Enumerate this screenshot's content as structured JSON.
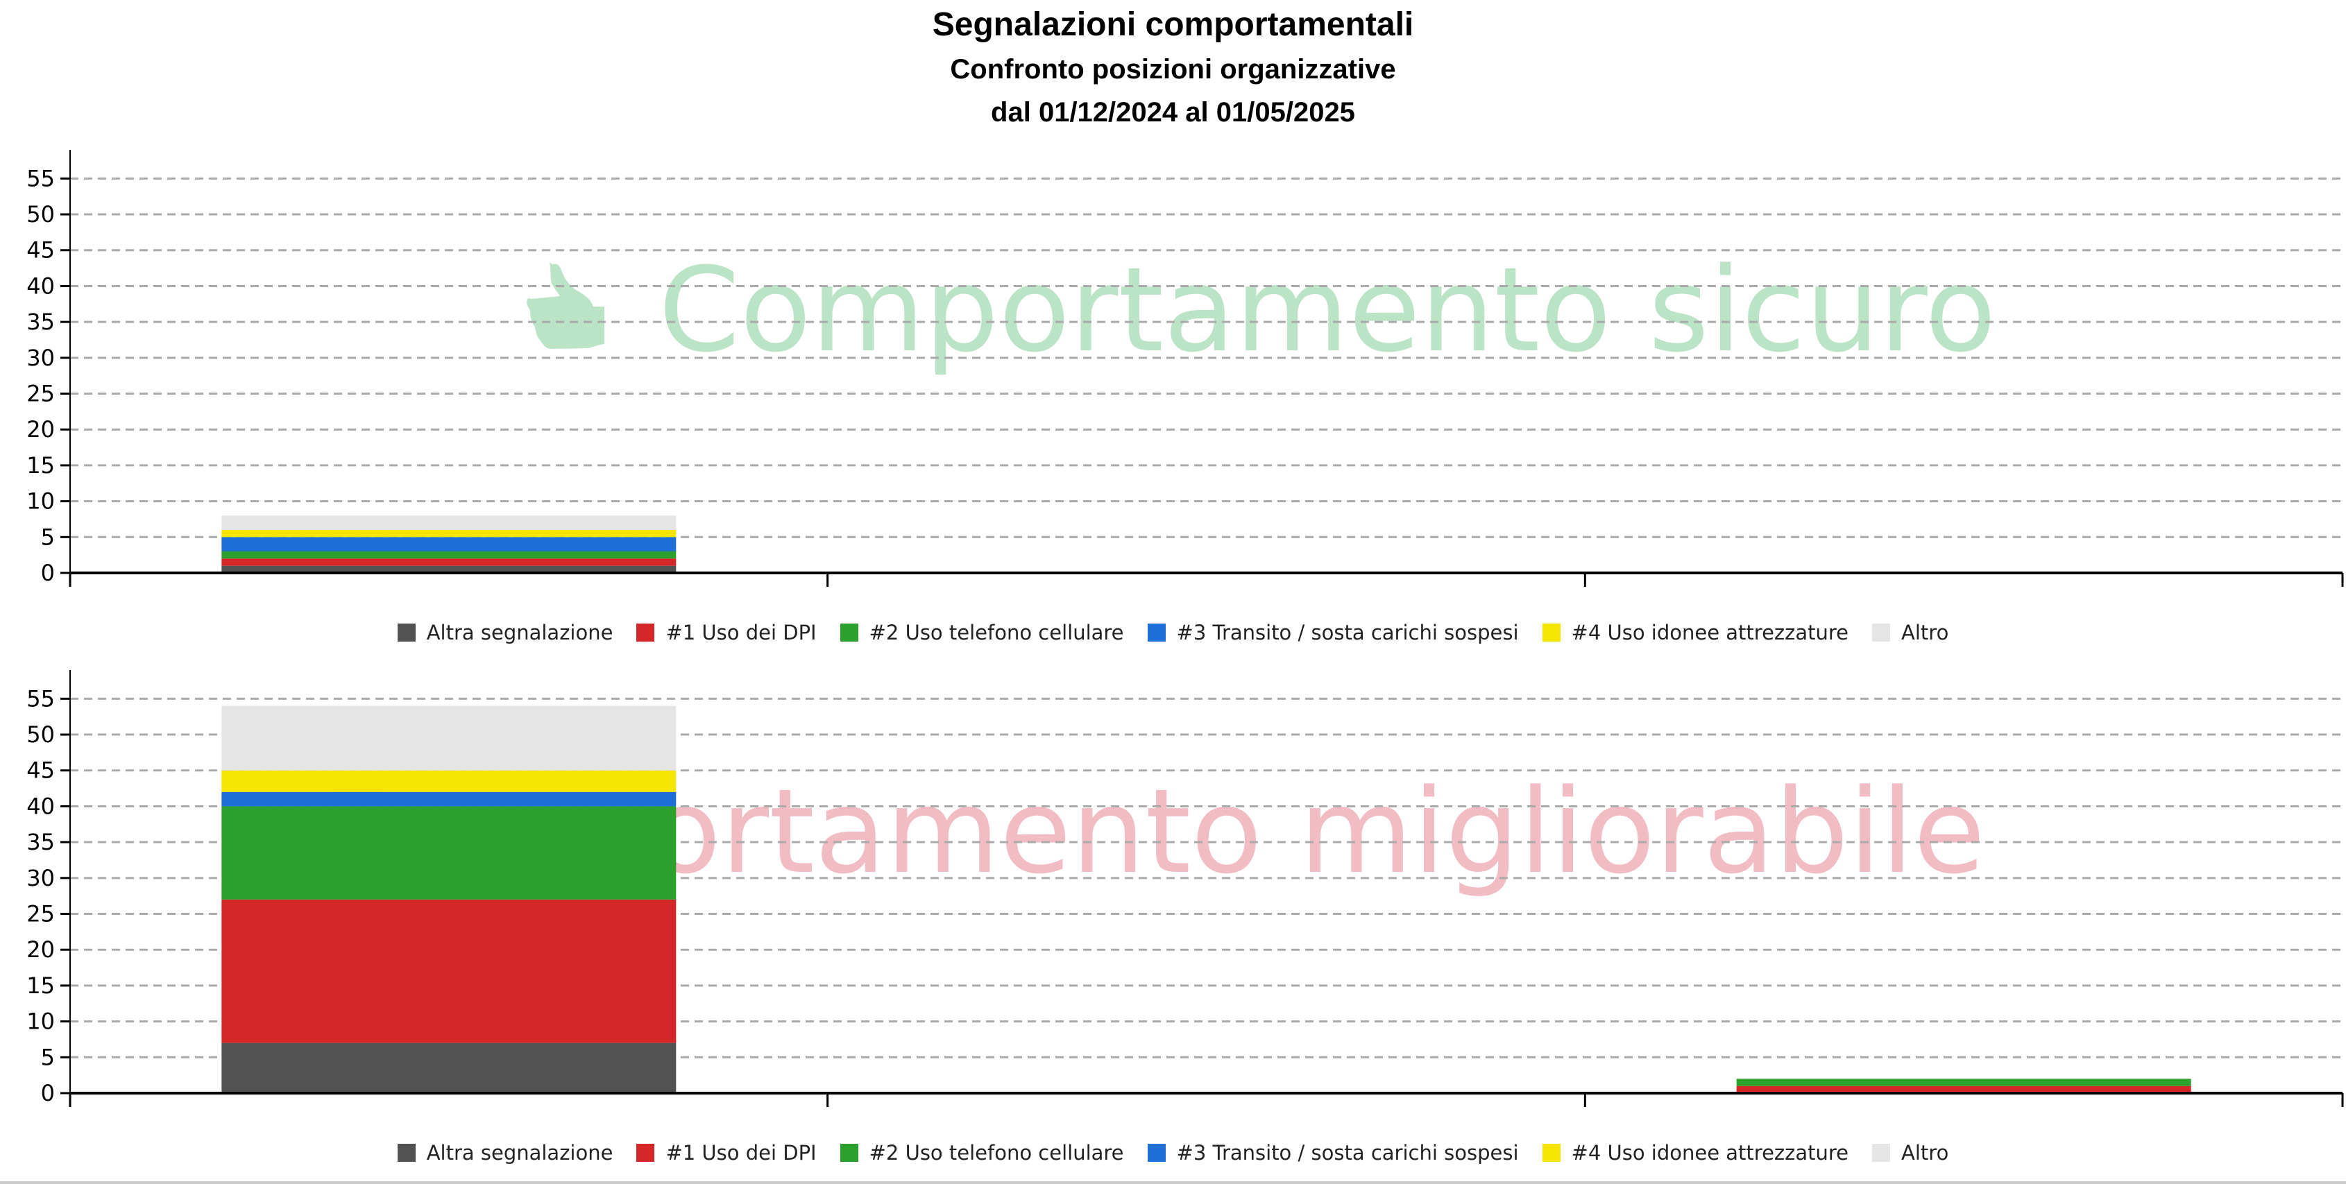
{
  "title": "Segnalazioni comportamentali",
  "subtitle": "Confronto posizioni organizzative",
  "period": "dal 01/12/2024 al 01/05/2025",
  "series_meta": [
    {
      "name": "Altra segnalazione",
      "color": "#525252"
    },
    {
      "name": "#1 Uso dei DPI",
      "color": "#d62728"
    },
    {
      "name": "#2 Uso telefono cellulare",
      "color": "#2ca02c"
    },
    {
      "name": "#3 Transito / sosta carichi sospesi",
      "color": "#1f6fd6"
    },
    {
      "name": "#4 Uso idonee attrezzature",
      "color": "#f5e500"
    },
    {
      "name": "Altro",
      "color": "#e5e5e5"
    }
  ],
  "chart_data": [
    {
      "type": "bar",
      "stacked": true,
      "watermark": "Comportamento sicuro",
      "watermark_icon": "thumbs-up-icon",
      "watermark_color": "#bbe3c5",
      "categories": [
        "",
        "",
        ""
      ],
      "ylim": [
        0,
        59
      ],
      "yticks": [
        0,
        5,
        10,
        15,
        20,
        25,
        30,
        35,
        40,
        45,
        50,
        55
      ],
      "grid": true,
      "legend": "bottom",
      "series": [
        {
          "name": "Altra segnalazione",
          "values": [
            1,
            0,
            0
          ]
        },
        {
          "name": "#1 Uso dei DPI",
          "values": [
            1,
            0,
            0
          ]
        },
        {
          "name": "#2 Uso telefono cellulare",
          "values": [
            1,
            0,
            0
          ]
        },
        {
          "name": "#3 Transito / sosta carichi sospesi",
          "values": [
            2,
            0,
            0
          ]
        },
        {
          "name": "#4 Uso idonee attrezzature",
          "values": [
            1,
            0,
            0
          ]
        },
        {
          "name": "Altro",
          "values": [
            2,
            0,
            0
          ]
        }
      ]
    },
    {
      "type": "bar",
      "stacked": true,
      "watermark": "Comportamento migliorabile",
      "watermark_color": "#f2bcc4",
      "categories": [
        "",
        "",
        ""
      ],
      "ylim": [
        0,
        59
      ],
      "yticks": [
        0,
        5,
        10,
        15,
        20,
        25,
        30,
        35,
        40,
        45,
        50,
        55
      ],
      "grid": true,
      "legend": "bottom",
      "series": [
        {
          "name": "Altra segnalazione",
          "values": [
            7,
            0,
            0
          ]
        },
        {
          "name": "#1 Uso dei DPI",
          "values": [
            20,
            0,
            1
          ]
        },
        {
          "name": "#2 Uso telefono cellulare",
          "values": [
            13,
            0,
            1
          ]
        },
        {
          "name": "#3 Transito / sosta carichi sospesi",
          "values": [
            2,
            0,
            0
          ]
        },
        {
          "name": "#4 Uso idonee attrezzature",
          "values": [
            3,
            0,
            0
          ]
        },
        {
          "name": "Altro",
          "values": [
            9,
            0,
            0
          ]
        }
      ]
    }
  ]
}
